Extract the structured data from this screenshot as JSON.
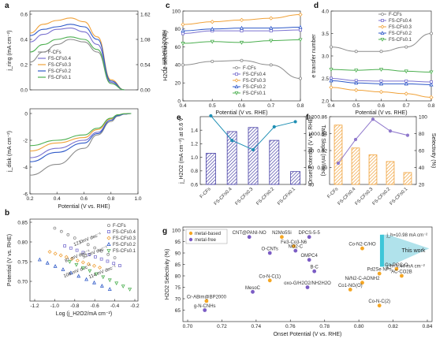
{
  "colors": {
    "F-CFs": "#8c8c8c",
    "FS-CFs0.4": "#7b72d0",
    "FS-CFs0.3": "#f0a23a",
    "FS-CFs0.2": "#2e59c8",
    "FS-CFs0.1": "#4caf50"
  },
  "legend_names": [
    "F-CFs",
    "FS-CFs0.4",
    "FS-CFs0.3",
    "FS-CFs0.2",
    "FS-CFs0.1"
  ],
  "panel_labels": [
    "a",
    "b",
    "c",
    "d",
    "e",
    "f",
    "g"
  ],
  "chart_data": [
    {
      "id": "a",
      "type": "line",
      "xlabel": "Potential (V vs. RHE)",
      "xlim": [
        0.2,
        1.0
      ],
      "xticks": [
        "0.2",
        "0.4",
        "0.6",
        "0.8",
        "1.0"
      ],
      "top": {
        "ylabel": "j_ring (mA cm⁻²)",
        "ylim": [
          0,
          0.6
        ],
        "yticks": [
          "0.0",
          "0.2",
          "0.4",
          "0.6"
        ],
        "y2label": "H2O2 (mA cm⁻²)",
        "y2ticks": [
          "0.00",
          "0.54",
          "1.08",
          "1.62"
        ],
        "series": [
          {
            "name": "F-CFs",
            "x": [
              0.2,
              0.3,
              0.4,
              0.5,
              0.6,
              0.7,
              0.8,
              0.9
            ],
            "y": [
              0.22,
              0.3,
              0.36,
              0.4,
              0.38,
              0.3,
              0.05,
              0.0
            ]
          },
          {
            "name": "FS-CFs0.4",
            "x": [
              0.2,
              0.3,
              0.4,
              0.5,
              0.6,
              0.7,
              0.8,
              0.9
            ],
            "y": [
              0.38,
              0.44,
              0.48,
              0.49,
              0.46,
              0.36,
              0.06,
              0.0
            ]
          },
          {
            "name": "FS-CFs0.3",
            "x": [
              0.2,
              0.3,
              0.4,
              0.5,
              0.6,
              0.7,
              0.8,
              0.9
            ],
            "y": [
              0.45,
              0.52,
              0.55,
              0.57,
              0.54,
              0.42,
              0.08,
              0.0
            ]
          },
          {
            "name": "FS-CFs0.2",
            "x": [
              0.2,
              0.3,
              0.4,
              0.5,
              0.6,
              0.7,
              0.8,
              0.9
            ],
            "y": [
              0.43,
              0.48,
              0.5,
              0.52,
              0.5,
              0.4,
              0.07,
              0.0
            ]
          },
          {
            "name": "FS-CFs0.1",
            "x": [
              0.2,
              0.3,
              0.4,
              0.5,
              0.6,
              0.7,
              0.8,
              0.9
            ],
            "y": [
              0.3,
              0.36,
              0.4,
              0.42,
              0.4,
              0.32,
              0.05,
              0.0
            ]
          }
        ]
      },
      "bottom": {
        "ylabel": "j_disk (mA cm⁻²)",
        "ylim": [
          -6,
          0
        ],
        "yticks": [
          "0",
          "-2",
          "-4",
          "-6"
        ],
        "series": [
          {
            "name": "F-CFs",
            "x": [
              0.2,
              0.4,
              0.6,
              0.7,
              0.8,
              0.85,
              0.9,
              0.95
            ],
            "y": [
              -4.6,
              -3.8,
              -2.6,
              -1.6,
              -0.6,
              -0.2,
              -0.05,
              0.0
            ]
          },
          {
            "name": "FS-CFs0.4",
            "x": [
              0.2,
              0.4,
              0.6,
              0.7,
              0.8,
              0.85,
              0.9,
              0.95
            ],
            "y": [
              -3.3,
              -2.6,
              -2.0,
              -1.4,
              -0.5,
              -0.15,
              -0.05,
              0.0
            ]
          },
          {
            "name": "FS-CFs0.3",
            "x": [
              0.2,
              0.4,
              0.6,
              0.7,
              0.8,
              0.85,
              0.9,
              0.95
            ],
            "y": [
              -2.8,
              -2.2,
              -1.8,
              -1.2,
              -0.4,
              -0.1,
              -0.02,
              0.0
            ]
          },
          {
            "name": "FS-CFs0.2",
            "x": [
              0.2,
              0.4,
              0.6,
              0.7,
              0.8,
              0.85,
              0.9,
              0.95
            ],
            "y": [
              -3.6,
              -2.9,
              -2.2,
              -1.5,
              -0.5,
              -0.15,
              -0.03,
              0.0
            ]
          },
          {
            "name": "FS-CFs0.1",
            "x": [
              0.2,
              0.4,
              0.6,
              0.7,
              0.8,
              0.85,
              0.9,
              0.95
            ],
            "y": [
              -2.4,
              -2.0,
              -1.6,
              -1.1,
              -0.35,
              -0.1,
              -0.02,
              0.0
            ]
          }
        ]
      }
    },
    {
      "id": "b",
      "type": "scatter",
      "xlabel": "Log (j_H2O2/mA cm⁻²)",
      "ylabel": "Potential (V vs. RHE)",
      "xlim": [
        -1.2,
        -0.2
      ],
      "ylim": [
        0.65,
        0.85
      ],
      "xticks": [
        "-1.2",
        "-1.0",
        "-0.8",
        "-0.6",
        "-0.4",
        "-0.2"
      ],
      "yticks": [
        "0.70",
        "0.75",
        "0.80",
        "0.85"
      ],
      "annotations": [
        "121 mV dec⁻¹",
        "92 mV dec⁻¹",
        "81 mV dec⁻¹",
        "108 mV dec⁻¹",
        "114 mV dec⁻¹"
      ],
      "series": [
        {
          "name": "F-CFs",
          "x": [
            -1.0,
            -0.4
          ],
          "y": [
            0.835,
            0.76
          ]
        },
        {
          "name": "FS-CFs0.4",
          "x": [
            -0.9,
            -0.35
          ],
          "y": [
            0.79,
            0.74
          ]
        },
        {
          "name": "FS-CFs0.3",
          "x": [
            -1.05,
            -0.55
          ],
          "y": [
            0.775,
            0.735
          ]
        },
        {
          "name": "FS-CFs0.2",
          "x": [
            -1.15,
            -0.45
          ],
          "y": [
            0.755,
            0.68
          ]
        },
        {
          "name": "FS-CFs0.1",
          "x": [
            -0.85,
            -0.25
          ],
          "y": [
            0.75,
            0.68
          ]
        }
      ]
    },
    {
      "id": "c",
      "type": "line",
      "xlabel": "Potential (V vs. RHE)",
      "ylabel": "H2O2 selectivity (%)",
      "xlim": [
        0.4,
        0.8
      ],
      "ylim": [
        0,
        100
      ],
      "xticks": [
        "0.4",
        "0.5",
        "0.6",
        "0.7",
        "0.8"
      ],
      "yticks": [
        "0",
        "20",
        "40",
        "60",
        "80",
        "100"
      ],
      "series": [
        {
          "name": "F-CFs",
          "x": [
            0.4,
            0.5,
            0.6,
            0.7,
            0.8
          ],
          "y": [
            40,
            44,
            45,
            40,
            25
          ]
        },
        {
          "name": "FS-CFs0.4",
          "x": [
            0.4,
            0.5,
            0.6,
            0.7,
            0.8
          ],
          "y": [
            75,
            78,
            78,
            78,
            79
          ]
        },
        {
          "name": "FS-CFs0.3",
          "x": [
            0.4,
            0.5,
            0.6,
            0.7,
            0.8
          ],
          "y": [
            85,
            88,
            90,
            92,
            96
          ]
        },
        {
          "name": "FS-CFs0.2",
          "x": [
            0.4,
            0.5,
            0.6,
            0.7,
            0.8
          ],
          "y": [
            78,
            80,
            81,
            81,
            82
          ]
        },
        {
          "name": "FS-CFs0.1",
          "x": [
            0.4,
            0.5,
            0.6,
            0.7,
            0.8
          ],
          "y": [
            64,
            66,
            65,
            67,
            68
          ]
        }
      ]
    },
    {
      "id": "d",
      "type": "line",
      "xlabel": "Potential (V vs. RHE)",
      "ylabel": "e transfer number",
      "xlim": [
        0.4,
        0.8
      ],
      "ylim": [
        2.0,
        4.0
      ],
      "xticks": [
        "0.4",
        "0.5",
        "0.6",
        "0.7",
        "0.8"
      ],
      "yticks": [
        "2.0",
        "2.5",
        "3.0",
        "3.5",
        "4.0"
      ],
      "series": [
        {
          "name": "F-CFs",
          "x": [
            0.4,
            0.5,
            0.6,
            0.7,
            0.8
          ],
          "y": [
            3.2,
            3.1,
            3.1,
            3.2,
            3.5
          ]
        },
        {
          "name": "FS-CFs0.4",
          "x": [
            0.4,
            0.5,
            0.6,
            0.7,
            0.8
          ],
          "y": [
            2.5,
            2.45,
            2.44,
            2.44,
            2.42
          ]
        },
        {
          "name": "FS-CFs0.3",
          "x": [
            0.4,
            0.5,
            0.6,
            0.7,
            0.8
          ],
          "y": [
            2.3,
            2.24,
            2.2,
            2.16,
            2.08
          ]
        },
        {
          "name": "FS-CFs0.2",
          "x": [
            0.4,
            0.5,
            0.6,
            0.7,
            0.8
          ],
          "y": [
            2.45,
            2.4,
            2.38,
            2.38,
            2.36
          ]
        },
        {
          "name": "FS-CFs0.1",
          "x": [
            0.4,
            0.5,
            0.6,
            0.7,
            0.8
          ],
          "y": [
            2.7,
            2.68,
            2.7,
            2.66,
            2.64
          ]
        }
      ]
    },
    {
      "id": "e",
      "type": "bar",
      "categories": [
        "F-CFs",
        "FS-CFs0.4",
        "FS-CFs0.3",
        "FS-CFs0.2",
        "FS-CFs0.1"
      ],
      "ylabel": "j_H2O2 (mA cm⁻²) at 0.6 V",
      "y2label": "Tafel Slope (mV/dec)",
      "ylim": [
        0.6,
        1.6
      ],
      "y2lim": [
        40,
        120
      ],
      "yticks": [
        "0.6",
        "0.8",
        "1.0",
        "1.2",
        "1.4"
      ],
      "y2ticks": [
        "40",
        "60",
        "80",
        "100",
        "120"
      ],
      "bar_values": [
        1.06,
        1.38,
        1.44,
        1.25,
        0.79
      ],
      "line_values": [
        121,
        92,
        81,
        108,
        114
      ]
    },
    {
      "id": "f",
      "type": "bar",
      "categories": [
        "F-CFs",
        "FS-CFs0.4",
        "FS-CFs0.3",
        "FS-CFs0.2",
        "FS-CFs0.1"
      ],
      "ylabel": "Onset Potential (V vs. RHE)",
      "y2label": "Selectivity (%)",
      "ylim": [
        0.78,
        0.86
      ],
      "y2lim": [
        20,
        100
      ],
      "yticks": [
        "0.80",
        "0.82",
        "0.84",
        "0.86"
      ],
      "y2ticks": [
        "20",
        "40",
        "60",
        "80",
        "100"
      ],
      "bar_values": [
        0.85,
        0.823,
        0.815,
        0.807,
        0.794
      ],
      "line_values": [
        45,
        73,
        97,
        83,
        78
      ]
    },
    {
      "id": "g",
      "type": "scatter",
      "xlabel": "Onset Potential (V vs. RHE)",
      "ylabel": "H2O2 Selectivity (%)",
      "xlim": [
        0.7,
        0.84
      ],
      "ylim": [
        60,
        100
      ],
      "xticks": [
        "0.70",
        "0.72",
        "0.74",
        "0.76",
        "0.78",
        "0.80",
        "0.82",
        "0.84"
      ],
      "yticks": [
        "65",
        "70",
        "75",
        "80",
        "85",
        "90",
        "95",
        "100"
      ],
      "legend": [
        "metal-based",
        "metal-free"
      ],
      "this_work_label": "This work",
      "this_work_top": "j_h=10.98 mA cm⁻²",
      "this_work_bottom": "j_h=1.44 mA cm⁻²",
      "points": [
        {
          "label": "CNT@PANI-NO",
          "x": 0.736,
          "y": 97,
          "kind": "metal-free"
        },
        {
          "label": "N2Mo5Si",
          "x": 0.755,
          "y": 97,
          "kind": "metal-based"
        },
        {
          "label": "DPCS-5-5",
          "x": 0.771,
          "y": 97,
          "kind": "metal-free"
        },
        {
          "label": "Fe3-Co3-N6",
          "x": 0.762,
          "y": 93,
          "kind": "metal-based"
        },
        {
          "label": "O-CNTs",
          "x": 0.748,
          "y": 90,
          "kind": "metal-free"
        },
        {
          "label": "NO2-C",
          "x": 0.763,
          "y": 91,
          "kind": "metal-free"
        },
        {
          "label": "OMPC4",
          "x": 0.771,
          "y": 87,
          "kind": "metal-free"
        },
        {
          "label": "B-C",
          "x": 0.774,
          "y": 82,
          "kind": "metal-free"
        },
        {
          "label": "Co-N-C(1)",
          "x": 0.748,
          "y": 78,
          "kind": "metal-based"
        },
        {
          "label": "oxo-G/H2O2/NH2H2O",
          "x": 0.77,
          "y": 75,
          "kind": "metal-free"
        },
        {
          "label": "MesoC",
          "x": 0.738,
          "y": 73,
          "kind": "metal-free"
        },
        {
          "label": "Cr-ABim@BP2000",
          "x": 0.711,
          "y": 69,
          "kind": "metal-based"
        },
        {
          "label": "g-N-CNHs",
          "x": 0.71,
          "y": 65,
          "kind": "metal-free"
        },
        {
          "label": "Co-N2-C/HO",
          "x": 0.802,
          "y": 92,
          "kind": "metal-based"
        },
        {
          "label": "Pd2Se NPs",
          "x": 0.812,
          "y": 81,
          "kind": "metal-based"
        },
        {
          "label": "Ni/N2-C-AONH2",
          "x": 0.802,
          "y": 77,
          "kind": "metal-based"
        },
        {
          "label": "Co1-NG(O)",
          "x": 0.795,
          "y": 74,
          "kind": "metal-based"
        },
        {
          "label": "Co-N-C(2)",
          "x": 0.812,
          "y": 67,
          "kind": "metal-based"
        },
        {
          "label": "Co-POC-O",
          "x": 0.822,
          "y": 83,
          "kind": "metal-based"
        },
        {
          "label": "AC-CO2B",
          "x": 0.825,
          "y": 80,
          "kind": "metal-based"
        }
      ]
    }
  ]
}
